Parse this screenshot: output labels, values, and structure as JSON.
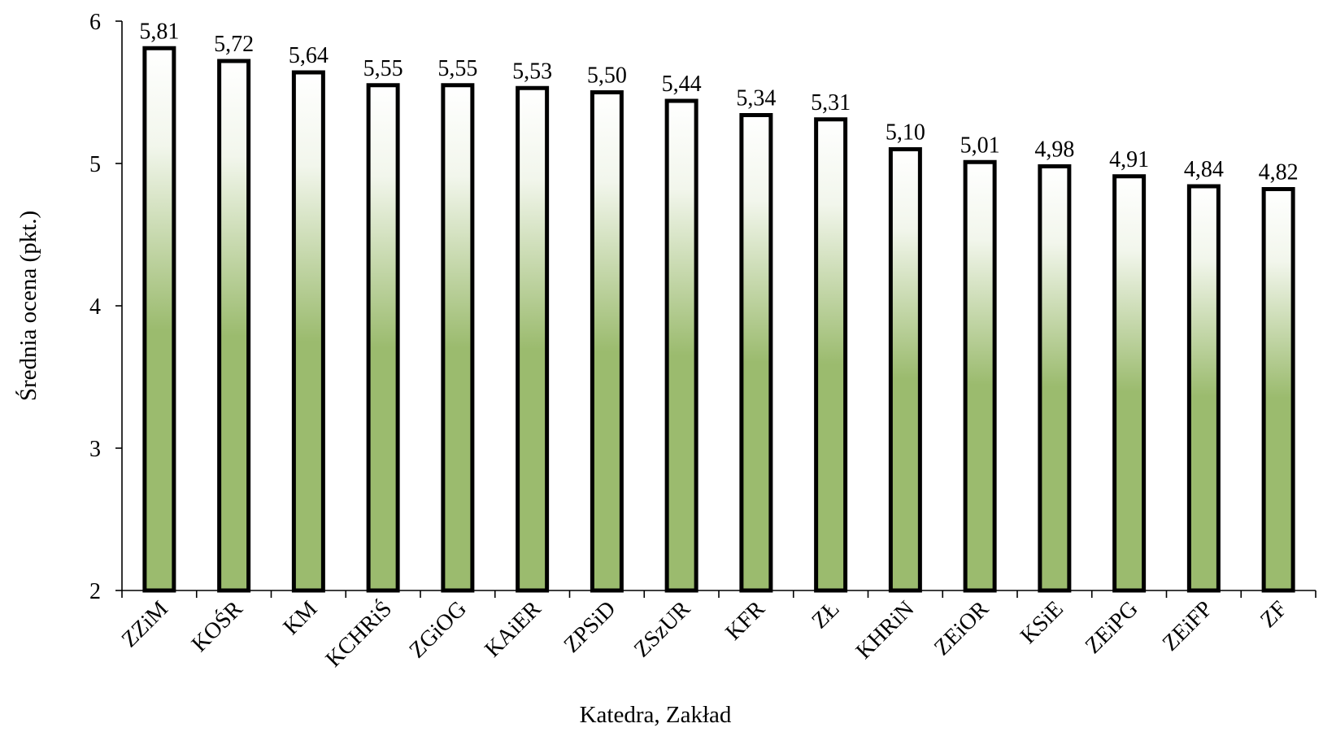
{
  "chart_data": {
    "type": "bar",
    "categories": [
      "ZZiM",
      "KOŚR",
      "KM",
      "KCHRiŚ",
      "ZGiOG",
      "KAiER",
      "ZPSiD",
      "ZSzUR",
      "KFR",
      "ZŁ",
      "KHRiN",
      "ZEiOR",
      "KSiE",
      "ZEiPG",
      "ZEiFP",
      "ZF"
    ],
    "values": [
      5.81,
      5.72,
      5.64,
      5.55,
      5.55,
      5.53,
      5.5,
      5.44,
      5.34,
      5.31,
      5.1,
      5.01,
      4.98,
      4.91,
      4.84,
      4.82
    ],
    "value_labels": [
      "5,81",
      "5,72",
      "5,64",
      "5,55",
      "5,55",
      "5,53",
      "5,50",
      "5,44",
      "5,34",
      "5,31",
      "5,10",
      "5,01",
      "4,98",
      "4,91",
      "4,84",
      "4,82"
    ],
    "xlabel": "Katedra, Zakład",
    "ylabel": "Średnia ocena (pkt.)",
    "ylim": [
      2,
      6
    ],
    "yticks": [
      2,
      3,
      4,
      5,
      6
    ],
    "ytick_labels": [
      "2",
      "3",
      "4",
      "5",
      "6"
    ],
    "grid": false,
    "legend": "none",
    "colors": {
      "bar_top": "#ffffff",
      "bar_bottom": "#9bbb6e",
      "bar_outline": "#000000"
    }
  }
}
